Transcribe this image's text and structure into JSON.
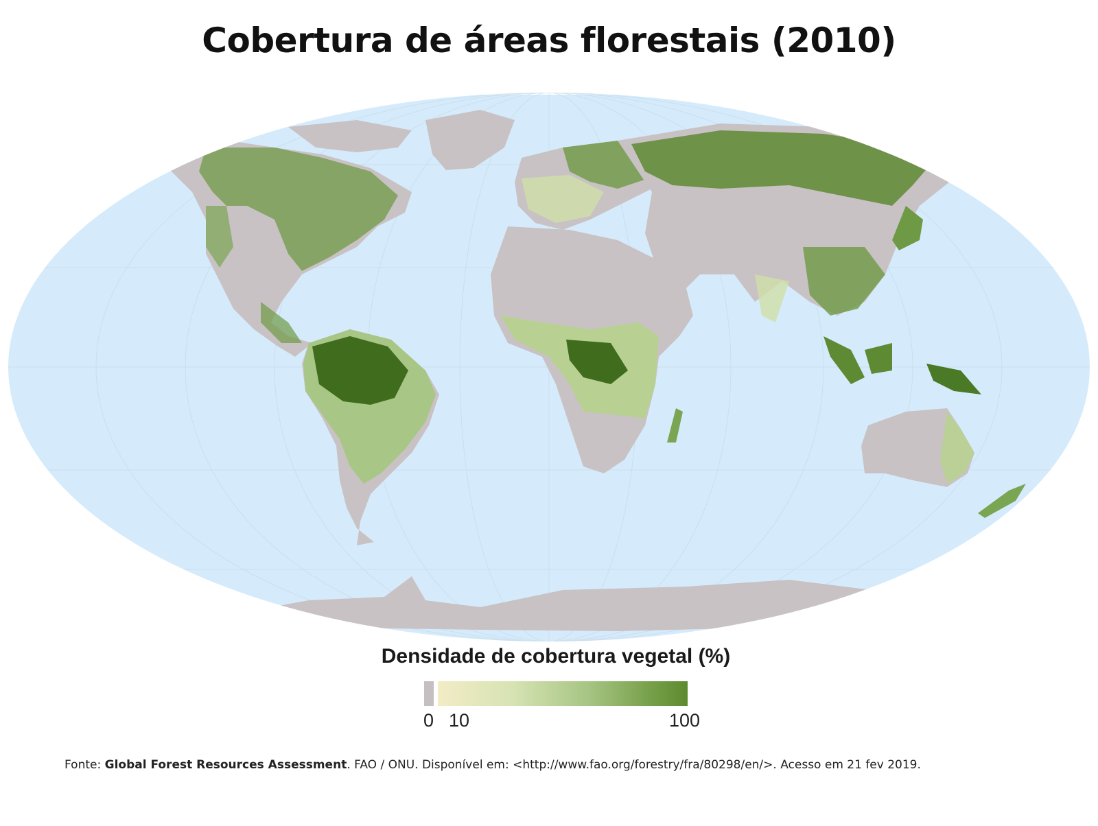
{
  "title": "Cobertura de áreas florestais (2010)",
  "legend": {
    "title": "Densidade de cobertura vegetal (%)",
    "ticks": [
      "0",
      "10",
      "100"
    ],
    "colors": {
      "zero": "#c6bfc1",
      "low": "#f3ecc6",
      "mid": "#a7c584",
      "high": "#5f8a2f"
    }
  },
  "map": {
    "ocean_color": "#d5ebfb",
    "land_color": "#c9c2c4",
    "projection": "Robinson"
  },
  "source": {
    "prefix": "Fonte: ",
    "bold": "Global Forest Resources Assessment",
    "rest": ". FAO / ONU. Disponível em: <http://www.fao.org/forestry/fra/80298/en/>. Acesso em 21 fev 2019."
  }
}
